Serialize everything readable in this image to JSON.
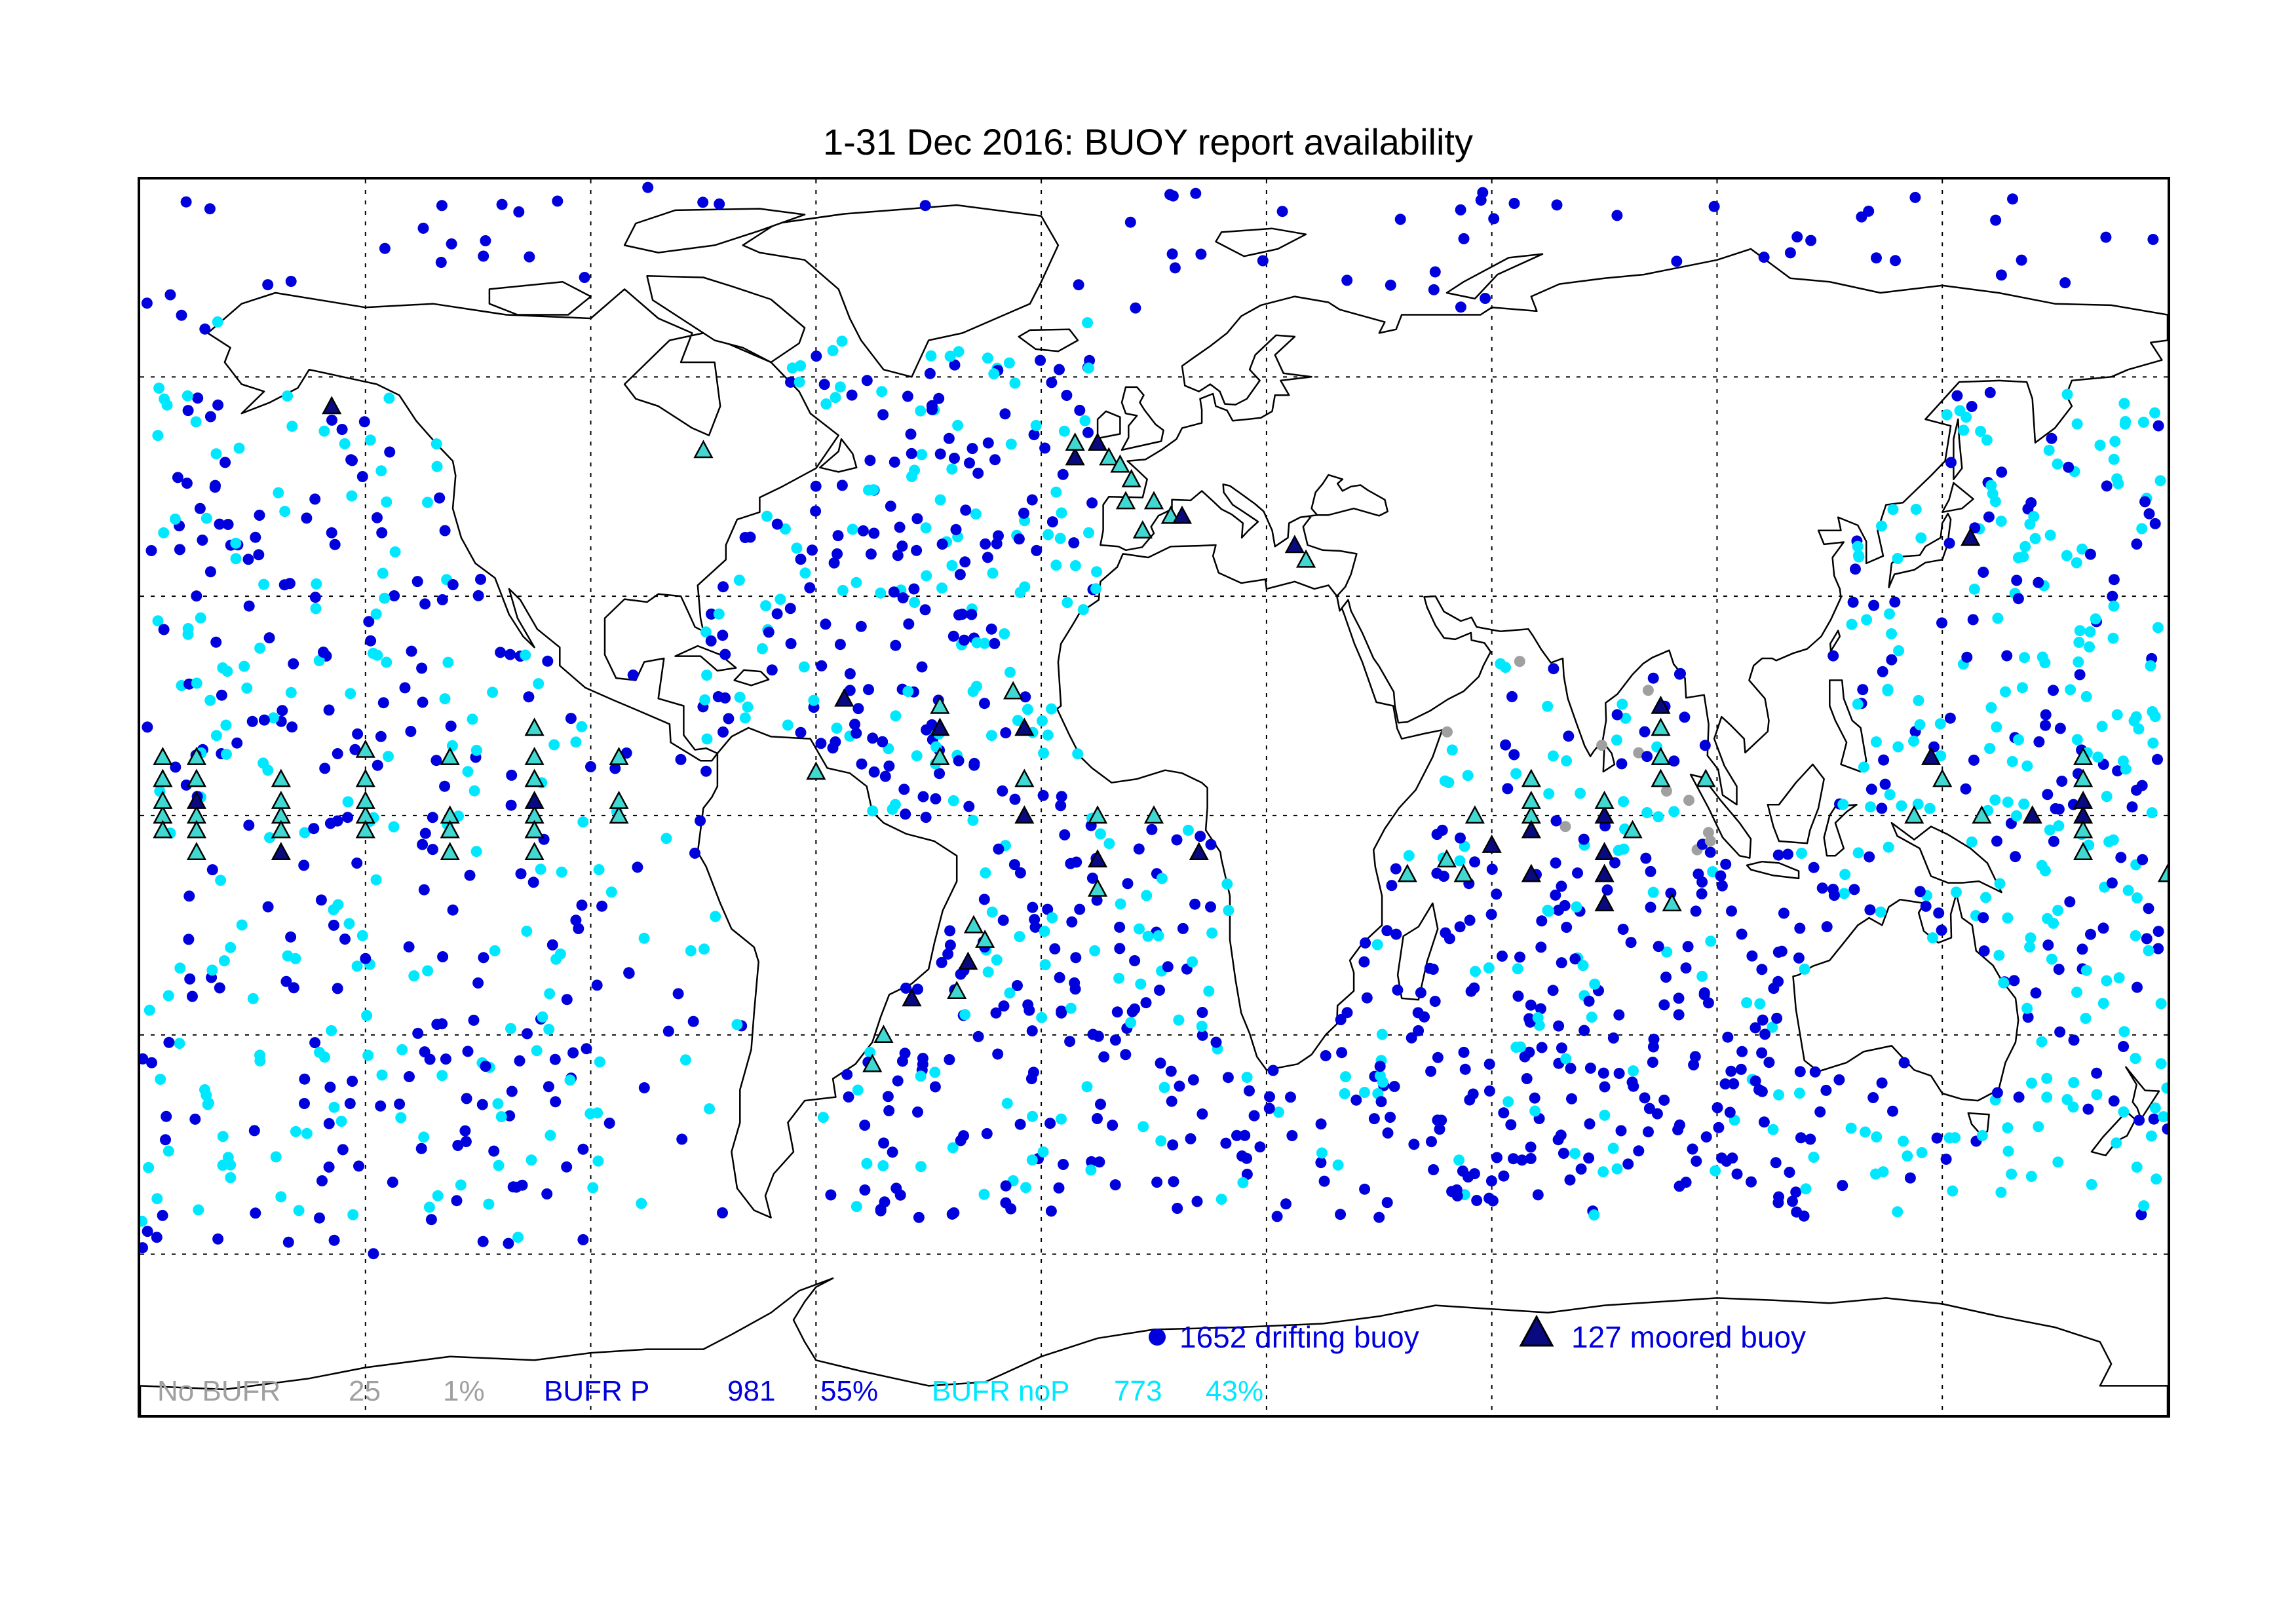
{
  "map": {
    "title": "1-31 Dec 2016: BUOY report availability",
    "projection": "equirectangular",
    "lon_range": [
      -180,
      180
    ],
    "lat_range": [
      -82,
      87
    ],
    "gridlines_lon": [
      -140,
      -100,
      -60,
      -20,
      20,
      60,
      100,
      140
    ],
    "gridlines_lat": [
      -60,
      -30,
      0,
      30,
      60
    ],
    "grid": true
  },
  "colors": {
    "drifting": "#0000dd",
    "drifting_nop": "#00e8ff",
    "no_bufr": "#a0a0a0",
    "moored_bufr_fill": "#0a0a80",
    "moored_nop_fill": "#40d8d0",
    "outline": "#000000"
  },
  "legend": {
    "drifting_label": "1652 drifting buoy",
    "moored_label": "127 moored buoy"
  },
  "stats": {
    "nobufr_label": "No BUFR",
    "nobufr_count": "25",
    "nobufr_pct": "1%",
    "bufrp_label": "BUFR P",
    "bufrp_count": "981",
    "bufrp_pct": "55%",
    "bufrnop_label": "BUFR noP",
    "bufrnop_count": "773",
    "bufrnop_pct": "43%"
  },
  "moored_buoys": [
    [
      -176,
      0,
      "n"
    ],
    [
      -176,
      2,
      "n"
    ],
    [
      -176,
      5,
      "n"
    ],
    [
      -176,
      8,
      "n"
    ],
    [
      -176,
      -2,
      "n"
    ],
    [
      -170,
      0,
      "n"
    ],
    [
      -170,
      2,
      "p"
    ],
    [
      -170,
      5,
      "n"
    ],
    [
      -170,
      8,
      "n"
    ],
    [
      -170,
      -2,
      "n"
    ],
    [
      -170,
      -5,
      "n"
    ],
    [
      -155,
      0,
      "n"
    ],
    [
      -155,
      2,
      "n"
    ],
    [
      -155,
      5,
      "n"
    ],
    [
      -155,
      -2,
      "n"
    ],
    [
      -155,
      -5,
      "p"
    ],
    [
      -140,
      0,
      "n"
    ],
    [
      -140,
      2,
      "n"
    ],
    [
      -140,
      5,
      "n"
    ],
    [
      -140,
      9,
      "n"
    ],
    [
      -140,
      -2,
      "n"
    ],
    [
      -125,
      0,
      "n"
    ],
    [
      -125,
      -2,
      "n"
    ],
    [
      -125,
      -5,
      "n"
    ],
    [
      -125,
      8,
      "n"
    ],
    [
      -110,
      0,
      "n"
    ],
    [
      -110,
      2,
      "p"
    ],
    [
      -110,
      5,
      "n"
    ],
    [
      -110,
      8,
      "n"
    ],
    [
      -110,
      -2,
      "n"
    ],
    [
      -110,
      -5,
      "n"
    ],
    [
      -110,
      12,
      "n"
    ],
    [
      -95,
      0,
      "n"
    ],
    [
      -95,
      2,
      "n"
    ],
    [
      -95,
      8,
      "n"
    ],
    [
      -38,
      15,
      "n"
    ],
    [
      -38,
      12,
      "p"
    ],
    [
      -38,
      8,
      "n"
    ],
    [
      -25,
      17,
      "n"
    ],
    [
      -23,
      12,
      "p"
    ],
    [
      -23,
      5,
      "n"
    ],
    [
      -23,
      0,
      "p"
    ],
    [
      -10,
      0,
      "n"
    ],
    [
      -10,
      -6,
      "p"
    ],
    [
      -10,
      -10,
      "n"
    ],
    [
      8,
      -5,
      "p"
    ],
    [
      0,
      0,
      "n"
    ],
    [
      -60,
      6,
      "n"
    ],
    [
      -55,
      16,
      "p"
    ],
    [
      -30,
      -17,
      "n"
    ],
    [
      -33,
      -20,
      "p"
    ],
    [
      -35,
      -24,
      "n"
    ],
    [
      -43,
      -25,
      "p"
    ],
    [
      -48,
      -30,
      "n"
    ],
    [
      -50,
      -34,
      "n"
    ],
    [
      -32,
      -15,
      "n"
    ],
    [
      -14,
      49,
      "p"
    ],
    [
      -14,
      51,
      "n"
    ],
    [
      -10,
      51,
      "p"
    ],
    [
      -8,
      49,
      "n"
    ],
    [
      -6,
      48,
      "n"
    ],
    [
      -4,
      46,
      "n"
    ],
    [
      -5,
      43,
      "n"
    ],
    [
      0,
      43,
      "n"
    ],
    [
      3,
      41,
      "n"
    ],
    [
      5,
      41,
      "p"
    ],
    [
      -2,
      39,
      "n"
    ],
    [
      -80,
      50,
      "n"
    ],
    [
      -146,
      56,
      "p"
    ],
    [
      25,
      37,
      "p"
    ],
    [
      27,
      35,
      "n"
    ],
    [
      45,
      -8,
      "n"
    ],
    [
      55,
      -8,
      "n"
    ],
    [
      67,
      0,
      "n"
    ],
    [
      67,
      2,
      "n"
    ],
    [
      67,
      5,
      "n"
    ],
    [
      67,
      -2,
      "p"
    ],
    [
      67,
      -8,
      "p"
    ],
    [
      80,
      0,
      "p"
    ],
    [
      80,
      2,
      "n"
    ],
    [
      80,
      -5,
      "p"
    ],
    [
      80,
      -8,
      "p"
    ],
    [
      80,
      -12,
      "p"
    ],
    [
      90,
      12,
      "n"
    ],
    [
      90,
      8,
      "n"
    ],
    [
      90,
      5,
      "n"
    ],
    [
      90,
      15,
      "p"
    ],
    [
      92,
      -12,
      "n"
    ],
    [
      135,
      0,
      "n"
    ],
    [
      138,
      8,
      "p"
    ],
    [
      140,
      5,
      "n"
    ],
    [
      147,
      0,
      "n"
    ],
    [
      156,
      0,
      "p"
    ],
    [
      165,
      0,
      "p"
    ],
    [
      165,
      2,
      "p"
    ],
    [
      165,
      5,
      "n"
    ],
    [
      165,
      8,
      "n"
    ],
    [
      165,
      -2,
      "n"
    ],
    [
      165,
      -5,
      "n"
    ],
    [
      180,
      -8,
      "n"
    ],
    [
      145,
      38,
      "p"
    ],
    [
      57,
      0,
      "n"
    ],
    [
      52,
      -6,
      "n"
    ],
    [
      98,
      5,
      "n"
    ],
    [
      60,
      -4,
      "p"
    ],
    [
      85,
      -2,
      "n"
    ]
  ]
}
